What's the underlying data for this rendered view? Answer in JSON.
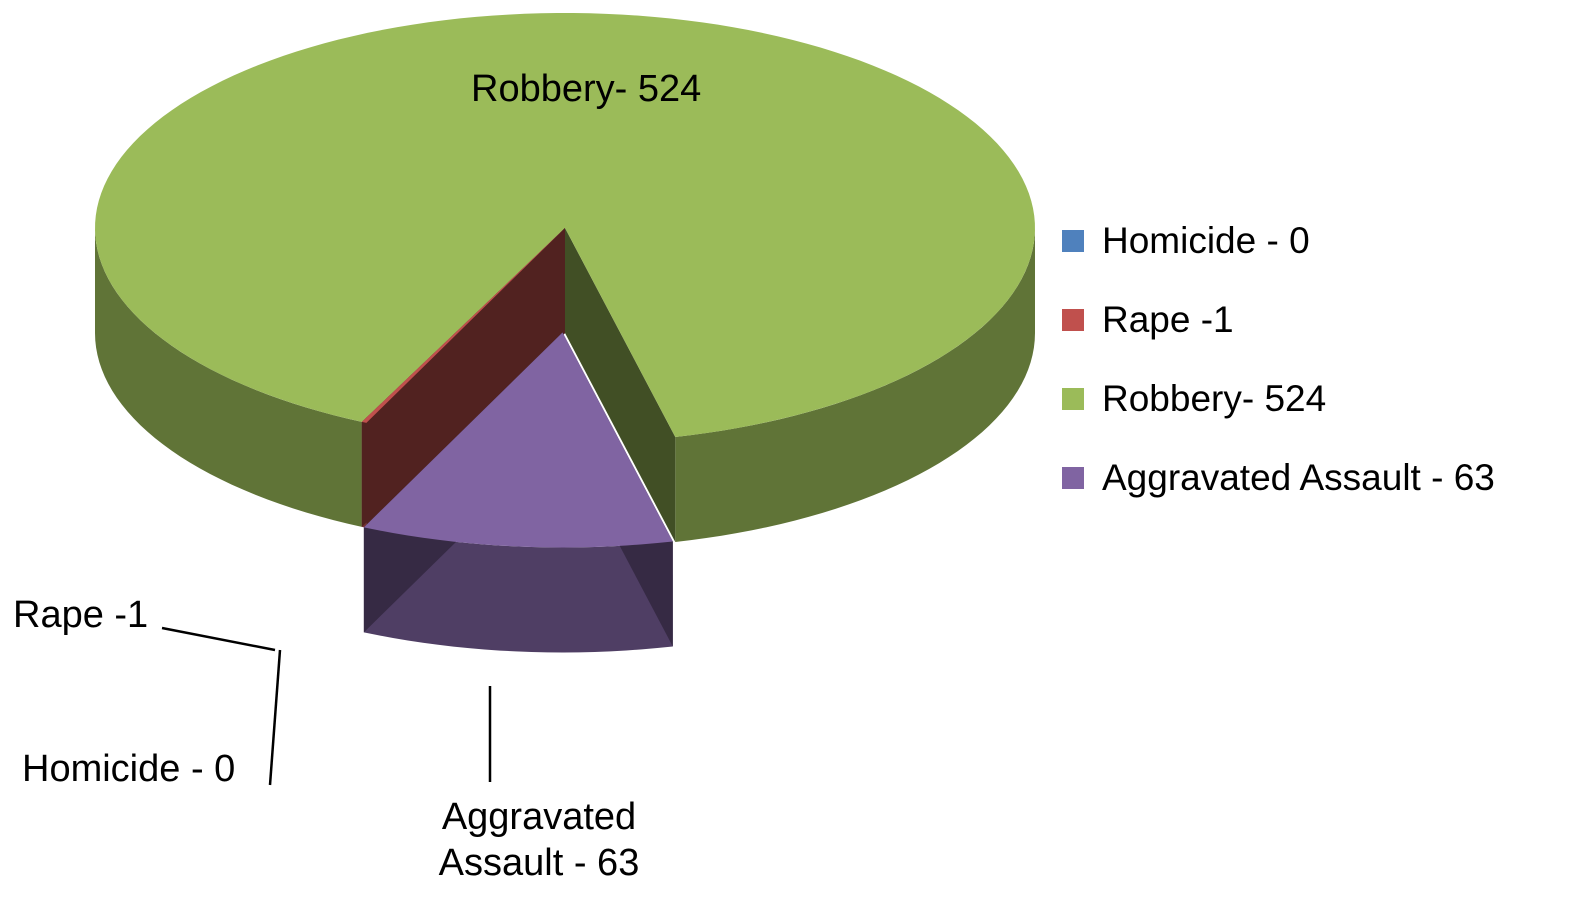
{
  "chart_data": {
    "type": "pie3d",
    "categories": [
      "Homicide - 0",
      "Rape -1",
      "Robbery- 524",
      "Aggravated Assault - 63"
    ],
    "values": [
      0,
      1,
      524,
      63
    ],
    "colors": [
      "#4f81bd",
      "#c0504d",
      "#9bbb59",
      "#8064a2"
    ],
    "exploded": [
      3
    ],
    "legend": "right"
  }
}
